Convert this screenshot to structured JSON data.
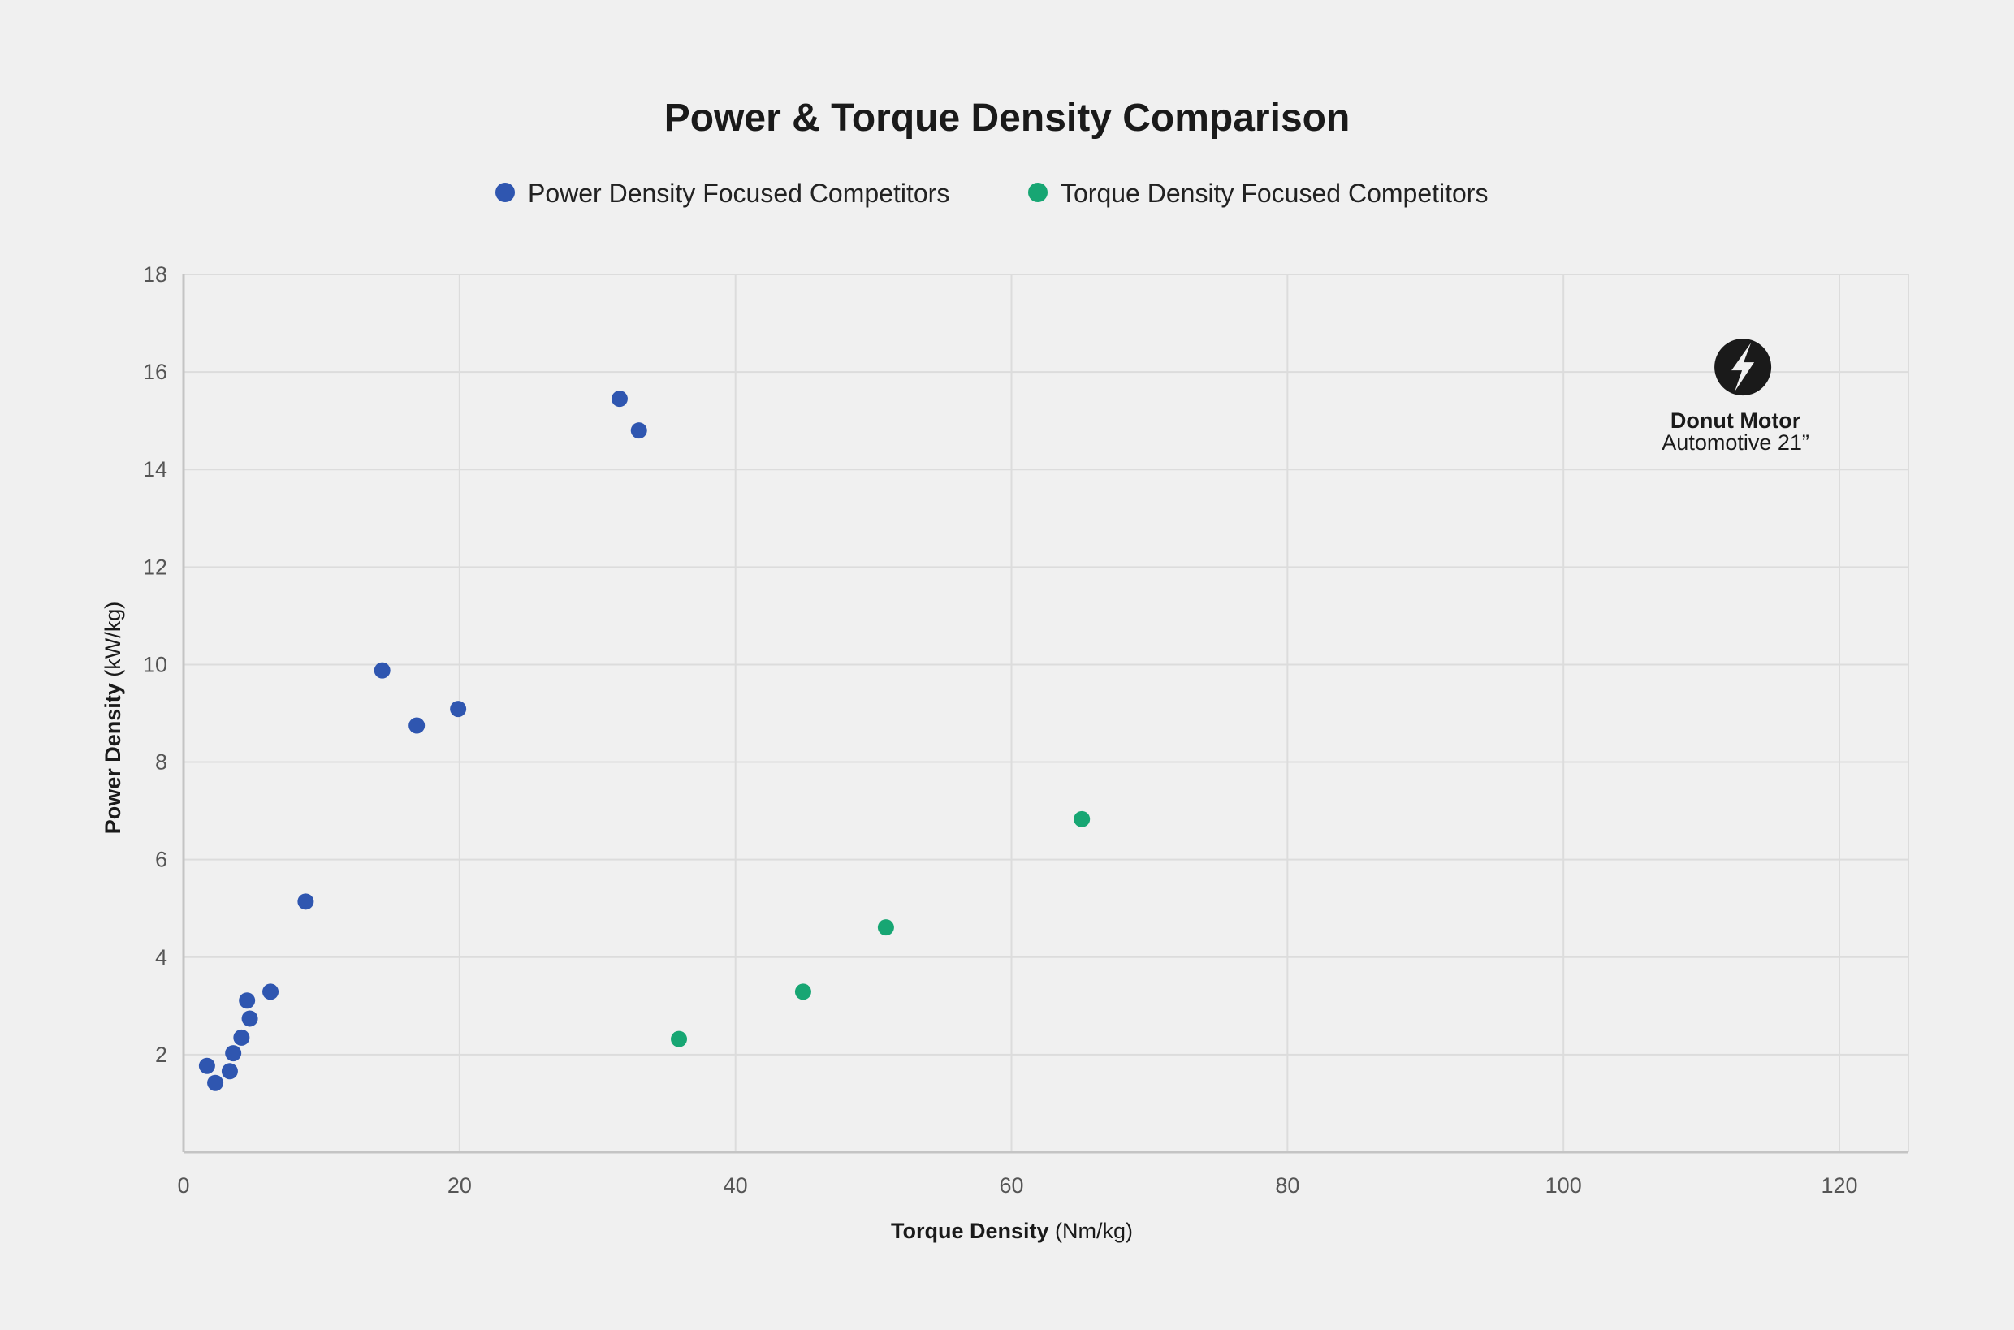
{
  "chart_data": {
    "type": "scatter",
    "title": "Power & Torque Density Comparison",
    "xlabel_bold": "Torque Density",
    "xlabel_unit": "(Nm/kg)",
    "ylabel_bold": "Power Density",
    "ylabel_unit": "(kW/kg)",
    "xlim": [
      0,
      125
    ],
    "ylim": [
      0,
      18
    ],
    "xticks": [
      0,
      20,
      40,
      60,
      80,
      100,
      120
    ],
    "yticks": [
      2,
      4,
      6,
      8,
      10,
      12,
      14,
      16,
      18
    ],
    "grid": true,
    "legend_position": "top-center",
    "series": [
      {
        "name": "Power Density Focused Competitors",
        "color": "#2f56b0",
        "points": [
          [
            31.6,
            15.45
          ],
          [
            33.0,
            14.8
          ],
          [
            14.4,
            9.88
          ],
          [
            16.9,
            8.75
          ],
          [
            19.9,
            9.09
          ],
          [
            8.85,
            5.14
          ],
          [
            6.3,
            3.29
          ],
          [
            4.6,
            3.11
          ],
          [
            4.8,
            2.74
          ],
          [
            4.2,
            2.35
          ],
          [
            3.6,
            2.03
          ],
          [
            1.7,
            1.77
          ],
          [
            3.35,
            1.66
          ],
          [
            2.3,
            1.42
          ]
        ]
      },
      {
        "name": "Torque Density Focused Competitors",
        "color": "#17a673",
        "points": [
          [
            35.9,
            2.32
          ],
          [
            44.9,
            3.29
          ],
          [
            50.9,
            4.61
          ],
          [
            65.1,
            6.83
          ]
        ]
      }
    ],
    "annotation": {
      "label_bold": "Donut Motor",
      "label": "Automotive 21”",
      "icon": "lightning-bolt-icon",
      "color": "#1a1a1a",
      "point": [
        113,
        16.1
      ]
    }
  }
}
